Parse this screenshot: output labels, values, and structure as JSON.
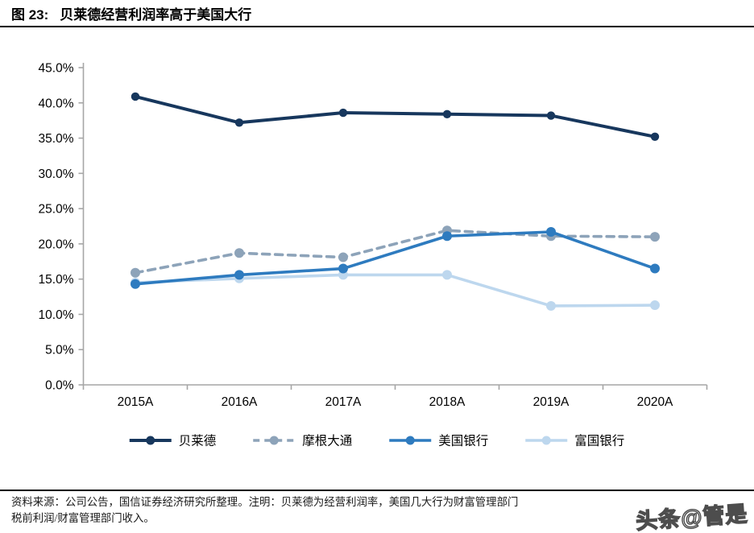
{
  "header": {
    "fig_label": "图 23:",
    "fig_title": "贝莱德经营利润率高于美国大行"
  },
  "chart_data": {
    "type": "line",
    "title": "贝莱德经营利润率高于美国大行",
    "categories": [
      "2015A",
      "2016A",
      "2017A",
      "2018A",
      "2019A",
      "2020A"
    ],
    "series": [
      {
        "name": "贝莱德",
        "values": [
          40.9,
          37.2,
          38.6,
          38.4,
          38.2,
          35.2
        ],
        "color": "#17375d",
        "dashed": false
      },
      {
        "name": "摩根大通",
        "values": [
          15.9,
          18.7,
          18.1,
          21.9,
          21.1,
          21.0
        ],
        "color": "#8da3b9",
        "dashed": true
      },
      {
        "name": "美国银行",
        "values": [
          14.3,
          15.6,
          16.5,
          21.1,
          21.7,
          16.5
        ],
        "color": "#2e7bbf",
        "dashed": false
      },
      {
        "name": "富国银行",
        "values": [
          14.5,
          15.1,
          15.6,
          15.6,
          11.2,
          11.3
        ],
        "color": "#bdd7ee",
        "dashed": false
      }
    ],
    "xlabel": "",
    "ylabel": "",
    "ylim": [
      0,
      45
    ],
    "ytick_labels": [
      "0.0%",
      "5.0%",
      "10.0%",
      "15.0%",
      "20.0%",
      "25.0%",
      "30.0%",
      "35.0%",
      "40.0%",
      "45.0%"
    ],
    "grid": false,
    "legend_position": "bottom",
    "axis_color": "#a6a6a6",
    "label_color": "#000000"
  },
  "footer": {
    "line1": "资料来源：公司公告，国信证券经济研究所整理。注明：贝莱德为经营利润率，美国几大行为财富管理部门",
    "line2": "税前利润/财富管理部门收入。"
  },
  "watermark": "头条@管是"
}
